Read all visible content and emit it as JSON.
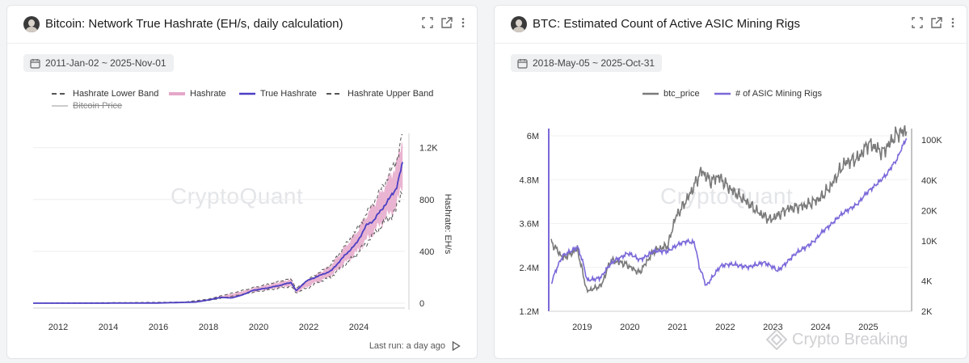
{
  "panels": [
    {
      "title": "Bitcoin: Network True Hashrate (EH/s, daily calculation)",
      "date_range": "2011-Jan-02 ~ 2025-Nov-01",
      "legend": [
        "Hashrate Lower Band",
        "Hashrate",
        "True Hashrate",
        "Hashrate Upper Band",
        "Bitcoin Price"
      ],
      "watermark": "CryptoQuant",
      "footer": "Last run: a day ago"
    },
    {
      "title": "BTC: Estimated Count of Active ASIC Mining Rigs",
      "date_range": "2018-May-05 ~ 2025-Oct-31",
      "legend": [
        "btc_price",
        "# of ASIC Mining Rigs"
      ],
      "watermark": "CryptoQuant"
    }
  ],
  "brand": "Crypto Breaking",
  "colors": {
    "true_hashrate": "#4b3fc4",
    "hashrate_band": "#e5a7c9",
    "band_dash": "#555555",
    "btc_price": "#7a7a7a",
    "asic_rigs": "#7b68d9"
  },
  "chart_data": [
    {
      "type": "area",
      "title": "Bitcoin: Network True Hashrate (EH/s, daily calculation)",
      "xlabel": "",
      "ylabel": "Hashrate: EH/s",
      "x_ticks": [
        "2012",
        "2014",
        "2016",
        "2018",
        "2020",
        "2022",
        "2024"
      ],
      "y_ticks": [
        "0",
        "400",
        "800",
        "1.2K"
      ],
      "ylim": [
        0,
        1360
      ],
      "series": [
        {
          "name": "True Hashrate",
          "x": [
            2011.0,
            2012.0,
            2013.0,
            2014.0,
            2015.0,
            2016.0,
            2017.0,
            2017.5,
            2018.0,
            2018.5,
            2018.9,
            2019.3,
            2019.8,
            2020.3,
            2020.8,
            2021.3,
            2021.5,
            2021.9,
            2022.4,
            2022.9,
            2023.4,
            2023.9,
            2024.3,
            2024.6,
            2024.9,
            2025.2,
            2025.5,
            2025.75
          ],
          "values": [
            0,
            0,
            0,
            0.3,
            0.5,
            1.5,
            6,
            9,
            25,
            45,
            40,
            60,
            100,
            115,
            135,
            160,
            95,
            170,
            210,
            250,
            360,
            460,
            600,
            640,
            720,
            800,
            890,
            1080
          ]
        },
        {
          "name": "Hashrate Upper Band",
          "x": [
            2011.0,
            2017.0,
            2018.0,
            2019.8,
            2021.3,
            2021.5,
            2022.9,
            2023.9,
            2024.9,
            2025.5,
            2025.75
          ],
          "values": [
            0,
            8,
            32,
            120,
            190,
            115,
            300,
            560,
            880,
            1100,
            1310
          ]
        },
        {
          "name": "Hashrate Lower Band",
          "x": [
            2011.0,
            2017.0,
            2018.0,
            2019.8,
            2021.3,
            2021.5,
            2022.9,
            2023.9,
            2024.9,
            2025.5,
            2025.75
          ],
          "values": [
            0,
            5,
            20,
            85,
            130,
            78,
            205,
            375,
            600,
            720,
            900
          ]
        }
      ],
      "hidden_series": [
        "Bitcoin Price"
      ]
    },
    {
      "type": "line",
      "title": "BTC: Estimated Count of Active ASIC Mining Rigs",
      "x_ticks": [
        "2019",
        "2020",
        "2021",
        "2022",
        "2023",
        "2024",
        "2025"
      ],
      "y_ticks_left": [
        "1.2M",
        "2.4M",
        "3.6M",
        "4.8M",
        "6M"
      ],
      "y_ticks_right": [
        "2K",
        "4K",
        "10K",
        "20K",
        "40K",
        "100K"
      ],
      "ylim_left": [
        1200000,
        6200000
      ],
      "y_right_scale": "log",
      "ylim_right": [
        2000,
        130000
      ],
      "series": [
        {
          "name": "btc_price",
          "axis": "left",
          "x": [
            2018.35,
            2018.6,
            2018.9,
            2019.1,
            2019.4,
            2019.6,
            2019.9,
            2020.2,
            2020.5,
            2020.8,
            2020.95,
            2021.1,
            2021.3,
            2021.5,
            2021.7,
            2021.85,
            2022.1,
            2022.4,
            2022.7,
            2022.95,
            2023.3,
            2023.7,
            2024.0,
            2024.2,
            2024.5,
            2024.8,
            2025.0,
            2025.3,
            2025.6,
            2025.8
          ],
          "values": [
            3100000,
            2650000,
            2900000,
            1750000,
            1900000,
            2600000,
            2500000,
            2250000,
            2850000,
            3000000,
            3750000,
            4050000,
            4500000,
            5050000,
            4750000,
            4900000,
            4550000,
            4250000,
            3900000,
            3700000,
            4000000,
            4100000,
            4300000,
            4600000,
            5250000,
            5400000,
            5800000,
            5550000,
            6050000,
            6150000
          ]
        },
        {
          "name": "# of ASIC Mining Rigs",
          "axis": "right",
          "x": [
            2018.35,
            2018.6,
            2018.9,
            2019.1,
            2019.4,
            2019.7,
            2019.95,
            2020.2,
            2020.5,
            2020.8,
            2021.0,
            2021.2,
            2021.35,
            2021.45,
            2021.6,
            2021.9,
            2022.2,
            2022.5,
            2022.8,
            2023.1,
            2023.5,
            2023.9,
            2024.2,
            2024.5,
            2024.8,
            2025.1,
            2025.4,
            2025.6,
            2025.8
          ],
          "values": [
            3800,
            7000,
            8800,
            4000,
            4400,
            6500,
            7500,
            6500,
            7800,
            8000,
            9000,
            10000,
            9700,
            5500,
            3500,
            5600,
            5900,
            5400,
            6200,
            5000,
            7500,
            10200,
            14500,
            19000,
            24000,
            34000,
            46000,
            64000,
            105000
          ]
        }
      ]
    }
  ]
}
